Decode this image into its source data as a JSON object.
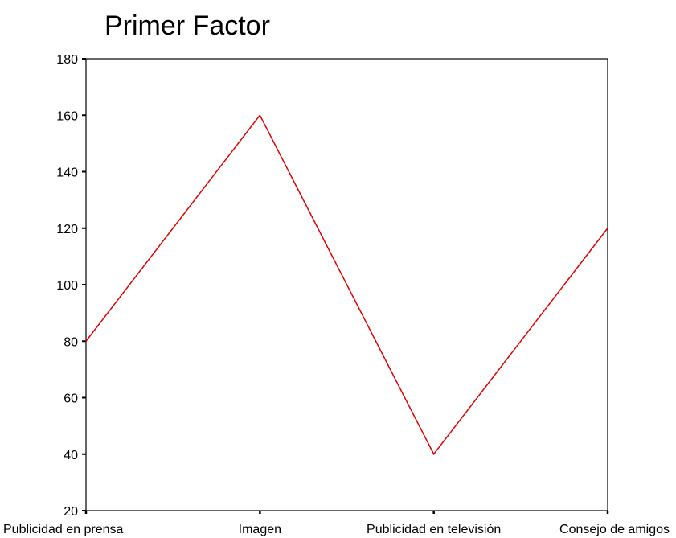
{
  "chart_data": {
    "type": "line",
    "title": "Primer Factor",
    "xlabel": "",
    "ylabel": "",
    "categories": [
      "Publicidad en prensa",
      "Imagen",
      "Publicidad en televisión",
      "Consejo de amigos"
    ],
    "series": [
      {
        "values": [
          80,
          160,
          40,
          120
        ],
        "color": "#e00000"
      }
    ],
    "ylim": [
      20,
      180
    ],
    "yticks": [
      20,
      40,
      60,
      80,
      100,
      120,
      140,
      160,
      180
    ],
    "grid": false,
    "legend": "none"
  }
}
